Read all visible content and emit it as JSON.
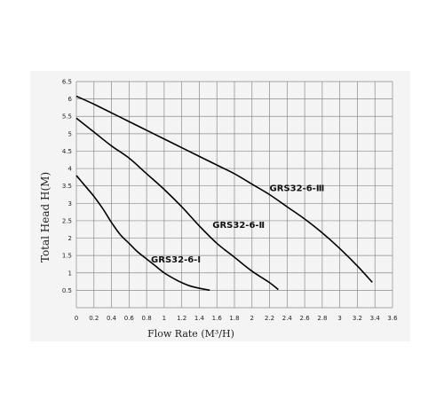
{
  "chart_data": {
    "type": "line",
    "title": "",
    "xlabel": "Flow Rate (M³/H)",
    "ylabel": "Total Head H(M)",
    "xlim": [
      0,
      3.6
    ],
    "ylim": [
      0,
      6.5
    ],
    "grid": true,
    "x_ticks": [
      "0",
      "0.2",
      "0.4",
      "0.6",
      "0.8",
      "1",
      "1.2",
      "1.4",
      "1.6",
      "1.8",
      "2",
      "2.2",
      "2.4",
      "2.6",
      "2.8",
      "3",
      "3.2",
      "3.4",
      "3.6"
    ],
    "y_ticks": [
      "0.5",
      "1",
      "1.5",
      "2",
      "2.5",
      "3",
      "3.5",
      "4",
      "4.5",
      "5",
      "5.5",
      "6",
      "6.5"
    ],
    "series": [
      {
        "name": "GRS32-6-Ⅰ",
        "x": [
          0,
          0.1,
          0.2,
          0.3,
          0.4,
          0.5,
          0.6,
          0.7,
          0.8,
          0.9,
          1.0,
          1.1,
          1.2,
          1.3,
          1.4,
          1.52
        ],
        "y": [
          3.8,
          3.5,
          3.2,
          2.85,
          2.45,
          2.1,
          1.85,
          1.6,
          1.4,
          1.2,
          1.0,
          0.85,
          0.72,
          0.62,
          0.56,
          0.5
        ]
      },
      {
        "name": "GRS32-6-Ⅱ",
        "x": [
          0,
          0.2,
          0.4,
          0.6,
          0.8,
          1.0,
          1.2,
          1.4,
          1.6,
          1.8,
          2.0,
          2.2,
          2.3
        ],
        "y": [
          5.45,
          5.05,
          4.65,
          4.3,
          3.85,
          3.4,
          2.9,
          2.35,
          1.85,
          1.45,
          1.05,
          0.72,
          0.52
        ]
      },
      {
        "name": "GRS32-6-Ⅲ",
        "x": [
          0,
          0.2,
          0.4,
          0.6,
          0.8,
          1.0,
          1.2,
          1.4,
          1.6,
          1.8,
          2.0,
          2.2,
          2.4,
          2.6,
          2.8,
          3.0,
          3.2,
          3.37
        ],
        "y": [
          6.08,
          5.85,
          5.6,
          5.35,
          5.1,
          4.85,
          4.6,
          4.35,
          4.1,
          3.85,
          3.55,
          3.25,
          2.9,
          2.55,
          2.15,
          1.7,
          1.2,
          0.73
        ]
      }
    ]
  }
}
